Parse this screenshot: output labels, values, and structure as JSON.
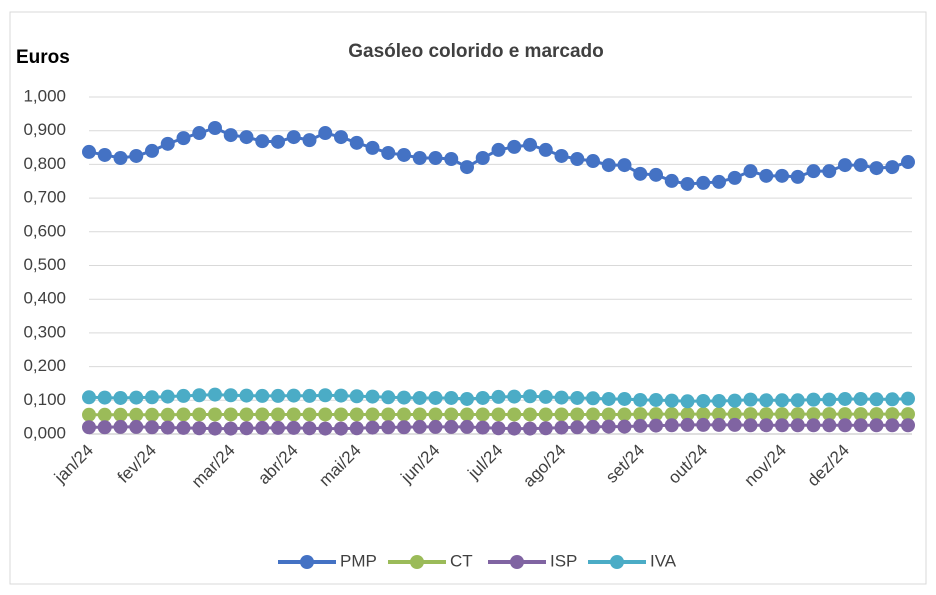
{
  "chart_data": {
    "type": "line",
    "title": "Gasóleo colorido e marcado",
    "y_label": "Euros",
    "categories": [
      "jan/24",
      null,
      null,
      null,
      "fev/24",
      null,
      null,
      null,
      null,
      "mar/24",
      null,
      null,
      null,
      "abr/24",
      null,
      null,
      null,
      "mai/24",
      null,
      null,
      null,
      null,
      "jun/24",
      null,
      null,
      null,
      "jul/24",
      null,
      null,
      null,
      "ago/24",
      null,
      null,
      null,
      null,
      "set/24",
      null,
      null,
      null,
      "out/24",
      null,
      null,
      null,
      null,
      "nov/24",
      null,
      null,
      null,
      "dez/24",
      null,
      null,
      null,
      null
    ],
    "series": [
      {
        "name": "PMP",
        "color": "#4472c4",
        "values": [
          0.837,
          0.828,
          0.819,
          0.825,
          0.84,
          0.861,
          0.878,
          0.893,
          0.908,
          0.887,
          0.881,
          0.869,
          0.867,
          0.881,
          0.872,
          0.893,
          0.881,
          0.864,
          0.849,
          0.834,
          0.828,
          0.819,
          0.819,
          0.816,
          0.792,
          0.819,
          0.843,
          0.852,
          0.858,
          0.843,
          0.825,
          0.816,
          0.81,
          0.798,
          0.798,
          0.772,
          0.769,
          0.751,
          0.742,
          0.745,
          0.748,
          0.76,
          0.78,
          0.766,
          0.766,
          0.763,
          0.78,
          0.78,
          0.798,
          0.798,
          0.789,
          0.792,
          0.807
        ]
      },
      {
        "name": "CT",
        "color": "#9bbb59",
        "values": [
          0.057,
          0.057,
          0.057,
          0.057,
          0.057,
          0.057,
          0.058,
          0.058,
          0.058,
          0.058,
          0.058,
          0.058,
          0.058,
          0.058,
          0.058,
          0.058,
          0.058,
          0.058,
          0.058,
          0.058,
          0.058,
          0.058,
          0.058,
          0.058,
          0.058,
          0.058,
          0.058,
          0.058,
          0.058,
          0.058,
          0.058,
          0.058,
          0.058,
          0.058,
          0.058,
          0.059,
          0.059,
          0.059,
          0.059,
          0.059,
          0.059,
          0.059,
          0.059,
          0.059,
          0.059,
          0.059,
          0.059,
          0.059,
          0.059,
          0.059,
          0.059,
          0.059,
          0.059
        ]
      },
      {
        "name": "ISP",
        "color": "#8064a2",
        "values": [
          0.02,
          0.02,
          0.021,
          0.021,
          0.02,
          0.019,
          0.018,
          0.017,
          0.016,
          0.016,
          0.017,
          0.018,
          0.018,
          0.018,
          0.017,
          0.016,
          0.016,
          0.017,
          0.019,
          0.02,
          0.02,
          0.021,
          0.021,
          0.021,
          0.021,
          0.019,
          0.017,
          0.016,
          0.016,
          0.017,
          0.019,
          0.02,
          0.021,
          0.022,
          0.022,
          0.024,
          0.025,
          0.026,
          0.027,
          0.027,
          0.027,
          0.027,
          0.026,
          0.026,
          0.026,
          0.026,
          0.026,
          0.026,
          0.026,
          0.026,
          0.026,
          0.026,
          0.026
        ]
      },
      {
        "name": "IVA",
        "color": "#4bacc6",
        "values": [
          0.109,
          0.108,
          0.107,
          0.108,
          0.109,
          0.111,
          0.113,
          0.115,
          0.117,
          0.115,
          0.114,
          0.113,
          0.113,
          0.114,
          0.113,
          0.115,
          0.114,
          0.112,
          0.111,
          0.109,
          0.108,
          0.107,
          0.107,
          0.107,
          0.104,
          0.107,
          0.11,
          0.111,
          0.112,
          0.11,
          0.108,
          0.107,
          0.106,
          0.104,
          0.104,
          0.101,
          0.101,
          0.099,
          0.097,
          0.098,
          0.098,
          0.099,
          0.102,
          0.1,
          0.1,
          0.1,
          0.102,
          0.102,
          0.104,
          0.104,
          0.103,
          0.103,
          0.105
        ]
      }
    ],
    "ylim": [
      0,
      1
    ],
    "yticks": [
      {
        "value": 0,
        "label": "0,000"
      },
      {
        "value": 0.1,
        "label": "0,100"
      },
      {
        "value": 0.2,
        "label": "0,200"
      },
      {
        "value": 0.3,
        "label": "0,300"
      },
      {
        "value": 0.4,
        "label": "0,400"
      },
      {
        "value": 0.5,
        "label": "0,500"
      },
      {
        "value": 0.6,
        "label": "0,600"
      },
      {
        "value": 0.7,
        "label": "0,700"
      },
      {
        "value": 0.8,
        "label": "0,800"
      },
      {
        "value": 0.9,
        "label": "0,900"
      },
      {
        "value": 1,
        "label": "1,000"
      }
    ],
    "grid": true,
    "legend": "bottom"
  }
}
